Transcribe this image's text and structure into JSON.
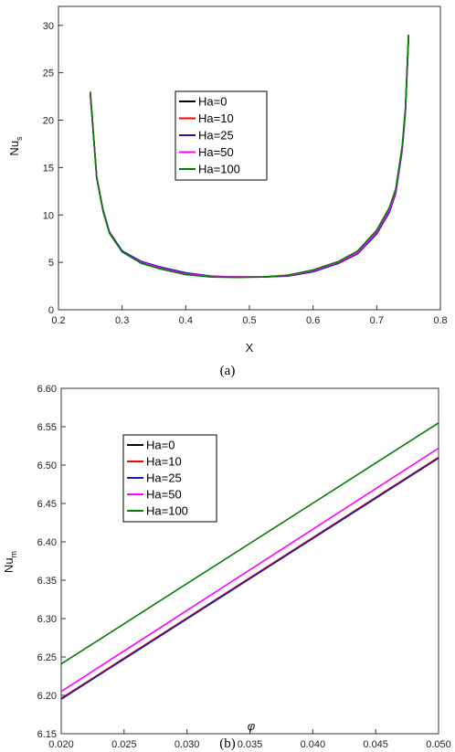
{
  "colors": {
    "Ha=0": "#000000",
    "Ha=10": "#ff0000",
    "Ha=25": "#1a1aa8",
    "Ha=50": "#ff00ff",
    "Ha=100": "#008000"
  },
  "chart_data": [
    {
      "type": "line",
      "caption": "(a)",
      "xlabel": "X",
      "ylabel_main": "Nu",
      "ylabel_sub": "s",
      "xlim": [
        0.2,
        0.8
      ],
      "ylim": [
        0,
        32
      ],
      "xticks": [
        "0.2",
        "0.3",
        "0.4",
        "0.5",
        "0.6",
        "0.7",
        "0.8"
      ],
      "yticks": [
        "0",
        "5",
        "10",
        "15",
        "20",
        "25",
        "30"
      ],
      "grid": false,
      "legend_position": "center",
      "series": [
        {
          "name": "Ha=0",
          "x": [
            0.25,
            0.26,
            0.27,
            0.28,
            0.3,
            0.33,
            0.36,
            0.4,
            0.44,
            0.48,
            0.52,
            0.56,
            0.6,
            0.64,
            0.67,
            0.7,
            0.72,
            0.73,
            0.74,
            0.745,
            0.75
          ],
          "y": [
            23,
            14,
            10.5,
            8.2,
            6.2,
            5.0,
            4.4,
            3.8,
            3.5,
            3.45,
            3.45,
            3.6,
            4.1,
            5.0,
            6.0,
            8.2,
            10.5,
            12.5,
            17,
            21,
            29
          ]
        },
        {
          "name": "Ha=10",
          "x": [
            0.25,
            0.26,
            0.27,
            0.28,
            0.3,
            0.33,
            0.36,
            0.4,
            0.44,
            0.48,
            0.52,
            0.56,
            0.6,
            0.64,
            0.67,
            0.7,
            0.72,
            0.73,
            0.74,
            0.745,
            0.75
          ],
          "y": [
            23,
            14,
            10.5,
            8.2,
            6.2,
            5.0,
            4.4,
            3.8,
            3.5,
            3.45,
            3.45,
            3.6,
            4.1,
            5.0,
            6.0,
            8.2,
            10.5,
            12.5,
            17,
            21,
            29
          ]
        },
        {
          "name": "Ha=25",
          "x": [
            0.25,
            0.26,
            0.27,
            0.28,
            0.3,
            0.33,
            0.36,
            0.4,
            0.44,
            0.48,
            0.52,
            0.56,
            0.6,
            0.64,
            0.67,
            0.7,
            0.72,
            0.73,
            0.74,
            0.745,
            0.75
          ],
          "y": [
            22.8,
            14,
            10.5,
            8.2,
            6.2,
            5.1,
            4.5,
            3.9,
            3.55,
            3.45,
            3.45,
            3.55,
            4.0,
            4.9,
            5.9,
            8.0,
            10.3,
            12.3,
            16.8,
            20.8,
            28.8
          ]
        },
        {
          "name": "Ha=50",
          "x": [
            0.25,
            0.26,
            0.27,
            0.28,
            0.3,
            0.33,
            0.36,
            0.4,
            0.44,
            0.48,
            0.52,
            0.56,
            0.6,
            0.64,
            0.67,
            0.7,
            0.72,
            0.73,
            0.74,
            0.745,
            0.75
          ],
          "y": [
            22.8,
            13.9,
            10.4,
            8.1,
            6.1,
            5.0,
            4.4,
            3.8,
            3.5,
            3.45,
            3.45,
            3.6,
            4.1,
            5.0,
            6.0,
            8.2,
            10.5,
            12.5,
            17,
            21,
            29
          ]
        },
        {
          "name": "Ha=100",
          "x": [
            0.25,
            0.26,
            0.27,
            0.28,
            0.3,
            0.33,
            0.36,
            0.4,
            0.44,
            0.48,
            0.52,
            0.56,
            0.6,
            0.64,
            0.67,
            0.7,
            0.72,
            0.73,
            0.74,
            0.745,
            0.75
          ],
          "y": [
            22.9,
            14,
            10.4,
            8.1,
            6.1,
            4.9,
            4.3,
            3.7,
            3.45,
            3.4,
            3.45,
            3.65,
            4.2,
            5.1,
            6.2,
            8.4,
            10.8,
            12.8,
            17.3,
            21.3,
            29
          ]
        }
      ]
    },
    {
      "type": "line",
      "caption": "(b)",
      "xlabel": "φ",
      "ylabel_main": "Nu",
      "ylabel_sub": "m",
      "xlim": [
        0.02,
        0.05
      ],
      "ylim": [
        6.15,
        6.6
      ],
      "xticks": [
        "0.020",
        "0.025",
        "0.030",
        "0.035",
        "0.040",
        "0.045",
        "0.050"
      ],
      "yticks": [
        "6.15",
        "6.20",
        "6.25",
        "6.30",
        "6.35",
        "6.40",
        "6.45",
        "6.50",
        "6.55",
        "6.60"
      ],
      "grid": false,
      "legend_position": "upper-left",
      "series": [
        {
          "name": "Ha=0",
          "x": [
            0.02,
            0.05
          ],
          "y": [
            6.196,
            6.51
          ]
        },
        {
          "name": "Ha=10",
          "x": [
            0.02,
            0.05
          ],
          "y": [
            6.196,
            6.51
          ]
        },
        {
          "name": "Ha=25",
          "x": [
            0.02,
            0.05
          ],
          "y": [
            6.195,
            6.509
          ]
        },
        {
          "name": "Ha=50",
          "x": [
            0.02,
            0.05
          ],
          "y": [
            6.205,
            6.522
          ]
        },
        {
          "name": "Ha=100",
          "x": [
            0.02,
            0.05
          ],
          "y": [
            6.241,
            6.555
          ]
        }
      ]
    }
  ]
}
